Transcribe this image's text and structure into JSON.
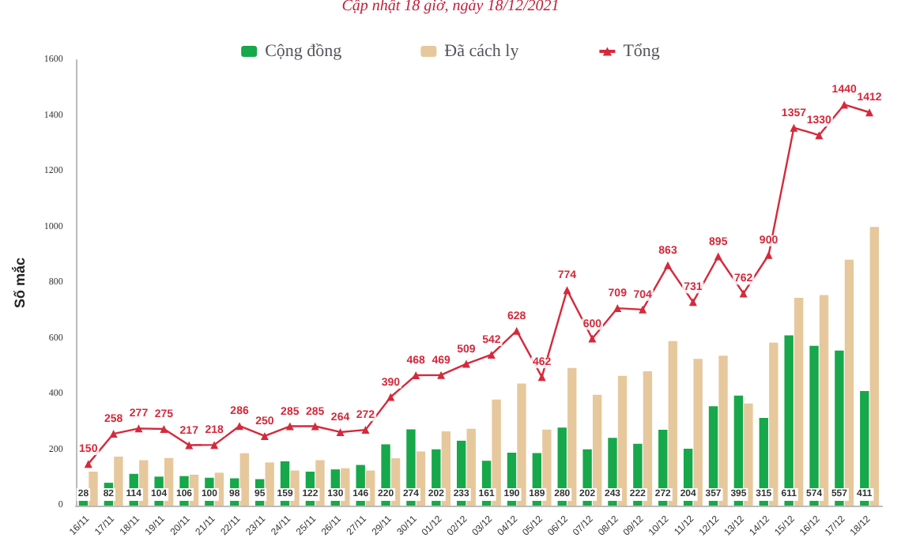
{
  "chart_data": {
    "type": "bar",
    "subtitle": "Cập nhật 18 giờ, ngày 18/12/2021",
    "ylabel": "Số mắc",
    "categories": [
      "16/11",
      "17/11",
      "18/11",
      "19/11",
      "20/11",
      "21/11",
      "22/11",
      "23/11",
      "24/11",
      "25/11",
      "26/11",
      "27/11",
      "29/11",
      "30/11",
      "01/12",
      "02/12",
      "03/12",
      "04/12",
      "05/12",
      "06/12",
      "07/12",
      "08/12",
      "09/12",
      "10/12",
      "11/12",
      "12/12",
      "13/12",
      "14/12",
      "15/12",
      "16/12",
      "17/12",
      "18/12"
    ],
    "series": [
      {
        "name": "Cộng đồng",
        "color": "#16a84a",
        "values": [
          28,
          82,
          114,
          104,
          106,
          100,
          98,
          95,
          159,
          122,
          130,
          146,
          220,
          274,
          202,
          233,
          161,
          190,
          189,
          280,
          202,
          243,
          222,
          272,
          204,
          357,
          395,
          315,
          611,
          574,
          557,
          411
        ],
        "value_labels": [
          "28",
          "82",
          "114",
          "104",
          "106",
          "100",
          "98",
          "95",
          "159",
          "122",
          "130",
          "146",
          "220",
          "274",
          "202",
          "233",
          "161",
          "190",
          "189",
          "280",
          "202",
          "243",
          "222",
          "272",
          "204",
          "357",
          "395",
          "315",
          "611",
          "574",
          "557",
          "411"
        ]
      },
      {
        "name": "Đã cách ly",
        "color": "#e6c89c",
        "values": [
          122,
          176,
          163,
          171,
          111,
          118,
          188,
          155,
          126,
          163,
          134,
          126,
          170,
          194,
          267,
          276,
          381,
          438,
          273,
          494,
          398,
          466,
          482,
          591,
          527,
          538,
          367,
          585,
          746,
          756,
          883,
          1001
        ]
      },
      {
        "name": "Tổng",
        "type": "line",
        "color": "#d42a3c",
        "marker": "triangle",
        "values": [
          150,
          258,
          277,
          275,
          217,
          218,
          286,
          250,
          285,
          285,
          264,
          272,
          390,
          468,
          469,
          509,
          542,
          628,
          462,
          774,
          600,
          709,
          704,
          863,
          731,
          895,
          762,
          900,
          1357,
          1330,
          1440,
          1412
        ],
        "value_labels": [
          "150",
          "258",
          "277",
          "275",
          "217",
          "218",
          "286",
          "250",
          "285",
          "285",
          "264",
          "272",
          "390",
          "468",
          "469",
          "509",
          "542",
          "628",
          "462",
          "774",
          "600",
          "709",
          "704",
          "863",
          "731",
          "895",
          "762",
          "900",
          "1357",
          "1330",
          "1440",
          "1412"
        ]
      }
    ],
    "ylim": [
      0,
      1600
    ],
    "yticks": [
      0,
      200,
      400,
      600,
      800,
      1000,
      1200,
      1400,
      1600
    ],
    "grid": false,
    "legend": "top"
  }
}
